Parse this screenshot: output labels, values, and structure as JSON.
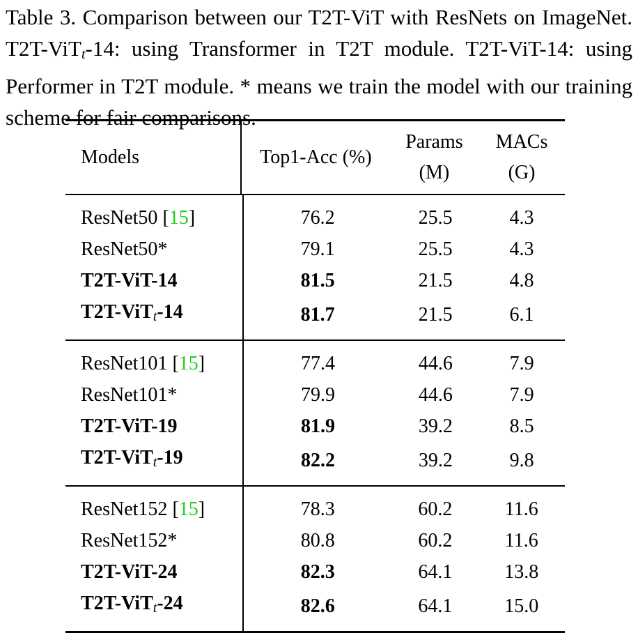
{
  "caption": {
    "label": "Table 3.",
    "text": "Comparison between our T2T-ViT with ResNets on ImageNet. T2T-ViT",
    "text_sub": "t",
    "text_after_sub": "-14: using Transformer in T2T module. T2T-ViT-14: using Performer in T2T module. * means we train the model with our training scheme for fair comparisons."
  },
  "table": {
    "headers": {
      "model": "Models",
      "acc": "Top1-Acc (%)",
      "params_line1": "Params",
      "params_line2": "(M)",
      "macs_line1": "MACs",
      "macs_line2": "(G)"
    },
    "groups": [
      {
        "rows": [
          {
            "model": "ResNet50 ",
            "cite": "15",
            "sub": "",
            "model_suffix": "",
            "bold": false,
            "acc": "76.2",
            "params": "25.5",
            "macs": "4.3"
          },
          {
            "model": "ResNet50*",
            "cite": "",
            "sub": "",
            "model_suffix": "",
            "bold": false,
            "acc": "79.1",
            "params": "25.5",
            "macs": "4.3"
          },
          {
            "model": "T2T-ViT-14",
            "cite": "",
            "sub": "",
            "model_suffix": "",
            "bold": true,
            "acc": "81.5",
            "params": "21.5",
            "macs": "4.8"
          },
          {
            "model": "T2T-ViT",
            "cite": "",
            "sub": "t",
            "model_suffix": "-14",
            "bold": true,
            "acc": "81.7",
            "params": "21.5",
            "macs": "6.1"
          }
        ]
      },
      {
        "rows": [
          {
            "model": "ResNet101 ",
            "cite": "15",
            "sub": "",
            "model_suffix": "",
            "bold": false,
            "acc": "77.4",
            "params": "44.6",
            "macs": "7.9"
          },
          {
            "model": "ResNet101*",
            "cite": "",
            "sub": "",
            "model_suffix": "",
            "bold": false,
            "acc": "79.9",
            "params": "44.6",
            "macs": "7.9"
          },
          {
            "model": "T2T-ViT-19",
            "cite": "",
            "sub": "",
            "model_suffix": "",
            "bold": true,
            "acc": "81.9",
            "params": "39.2",
            "macs": "8.5"
          },
          {
            "model": "T2T-ViT",
            "cite": "",
            "sub": "t",
            "model_suffix": "-19",
            "bold": true,
            "acc": "82.2",
            "params": "39.2",
            "macs": "9.8"
          }
        ]
      },
      {
        "rows": [
          {
            "model": "ResNet152 ",
            "cite": "15",
            "sub": "",
            "model_suffix": "",
            "bold": false,
            "acc": "78.3",
            "params": "60.2",
            "macs": "11.6"
          },
          {
            "model": "ResNet152*",
            "cite": "",
            "sub": "",
            "model_suffix": "",
            "bold": false,
            "acc": "80.8",
            "params": "60.2",
            "macs": "11.6"
          },
          {
            "model": "T2T-ViT-24",
            "cite": "",
            "sub": "",
            "model_suffix": "",
            "bold": true,
            "acc": "82.3",
            "params": "64.1",
            "macs": "13.8"
          },
          {
            "model": "T2T-ViT",
            "cite": "",
            "sub": "t",
            "model_suffix": "-24",
            "bold": true,
            "acc": "82.6",
            "params": "64.1",
            "macs": "15.0"
          }
        ]
      }
    ],
    "cite_color": "#1fcf1f"
  }
}
